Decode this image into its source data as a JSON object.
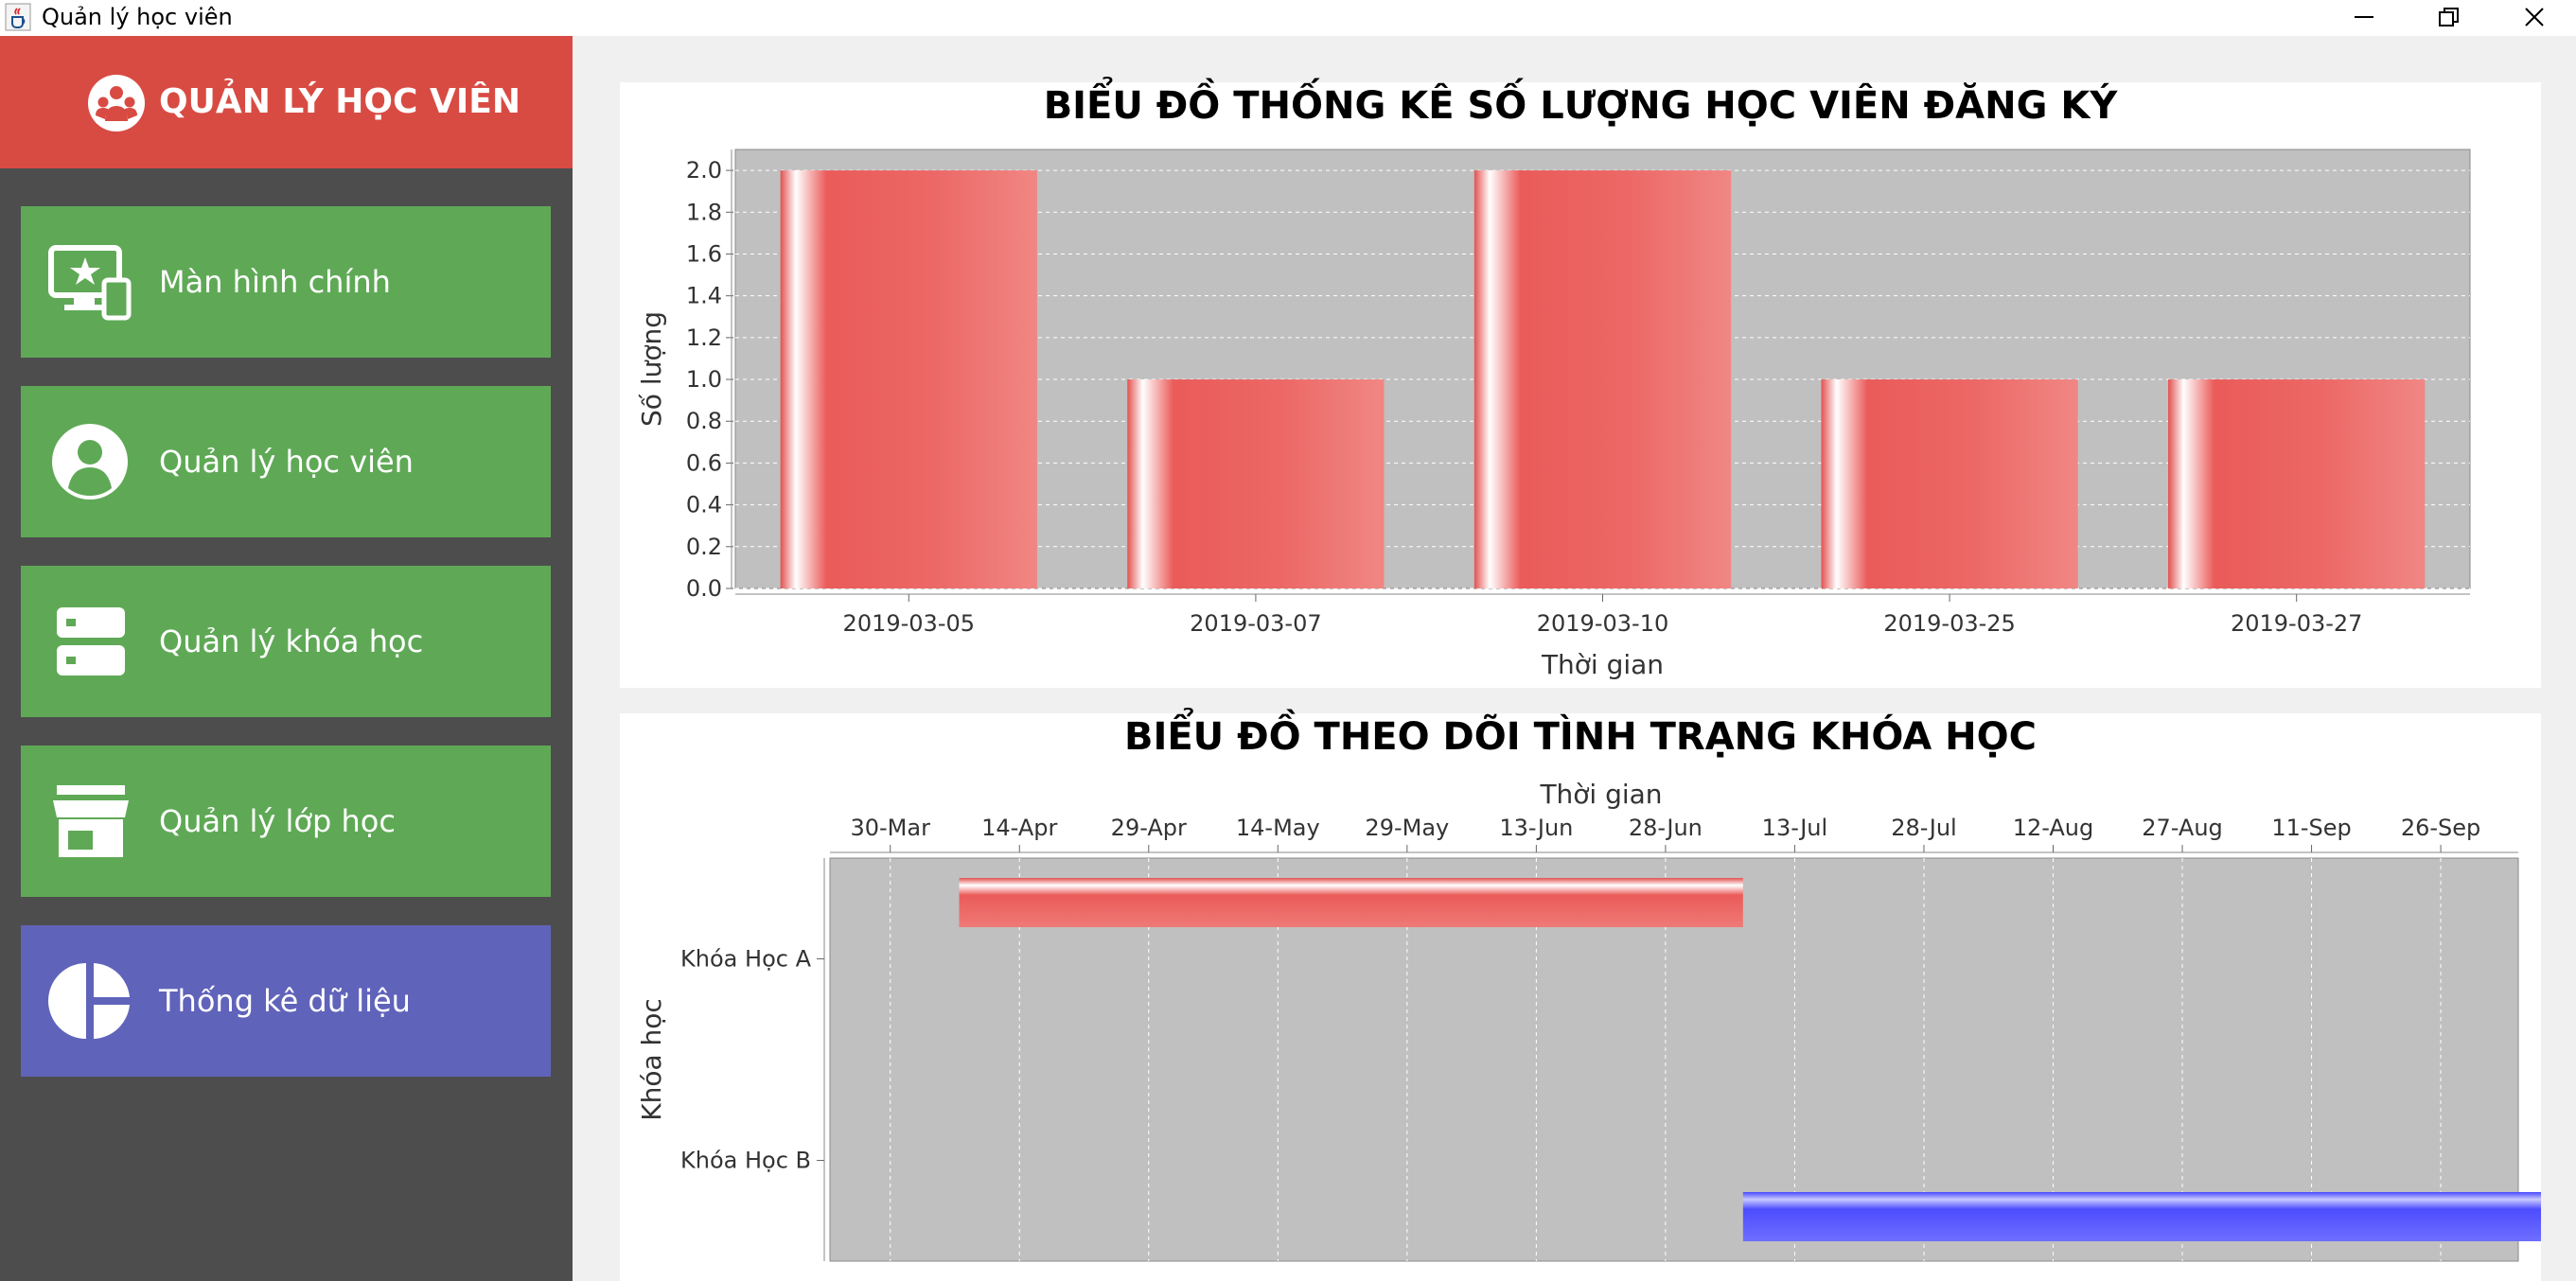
{
  "window": {
    "title": "Quản lý học viên",
    "icon": "java-cup-icon"
  },
  "sidebar": {
    "brand": {
      "title": "QUẢN LÝ HỌC VIÊN",
      "icon": "users-circle-icon"
    },
    "items": [
      {
        "label": "Màn hình chính",
        "icon": "monitor-star-icon",
        "active": false
      },
      {
        "label": "Quản lý học viên",
        "icon": "user-circle-icon",
        "active": false
      },
      {
        "label": "Quản lý khóa học",
        "icon": "server-icon",
        "active": false
      },
      {
        "label": "Quản lý lớp học",
        "icon": "store-icon",
        "active": false
      },
      {
        "label": "Thống kê dữ liệu",
        "icon": "pie-chart-icon",
        "active": true
      }
    ]
  },
  "colors": {
    "brand": "#d84b43",
    "menu_item": "#5fa956",
    "menu_item_active": "#6063ba",
    "sidebar_bg": "#4d4d4d",
    "plot_bg": "#c0c0c0",
    "bar_red": "#ec6866",
    "bar_blue": "#5a5aff"
  },
  "chart_data": [
    {
      "type": "bar",
      "title": "BIỂU ĐỒ THỐNG KÊ SỐ LƯỢNG HỌC VIÊN ĐĂNG KÝ",
      "xlabel": "Thời gian",
      "ylabel": "Số lượng",
      "categories": [
        "2019-03-05",
        "2019-03-07",
        "2019-03-10",
        "2019-03-25",
        "2019-03-27"
      ],
      "values": [
        2,
        1,
        2,
        1,
        1
      ],
      "ylim": [
        0,
        2.1
      ],
      "yticks": [
        "0.0",
        "0.2",
        "0.4",
        "0.6",
        "0.8",
        "1.0",
        "1.2",
        "1.4",
        "1.6",
        "1.8",
        "2.0"
      ],
      "grid": true,
      "legend": "none"
    },
    {
      "type": "gantt",
      "title": "BIỂU ĐỒ THEO DÕI TÌNH TRẠNG KHÓA HỌC",
      "xlabel": "Thời gian",
      "ylabel": "Khóa học",
      "xaxis_position": "top",
      "xticks": [
        "30-Mar",
        "14-Apr",
        "29-Apr",
        "14-May",
        "29-May",
        "13-Jun",
        "28-Jun",
        "13-Jul",
        "28-Jul",
        "12-Aug",
        "27-Aug",
        "11-Sep",
        "26-Sep"
      ],
      "xrange": [
        "23-Mar",
        "05-Oct"
      ],
      "tasks": [
        {
          "name": "Khóa Học A",
          "start": "07-Apr",
          "end": "07-Jul",
          "color": "#ec6866"
        },
        {
          "name": "Khóa Học B",
          "start": "07-Jul",
          "end": "08-Oct",
          "color": "#5a5aff"
        }
      ],
      "grid": true,
      "legend": "none"
    }
  ]
}
